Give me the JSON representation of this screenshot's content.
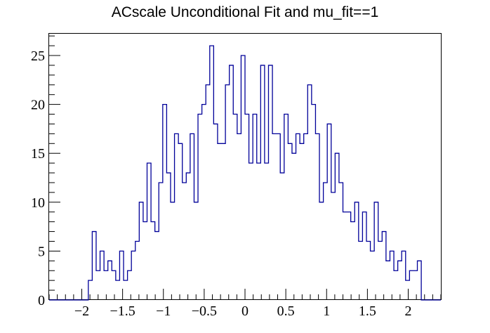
{
  "chart_data": {
    "type": "bar",
    "title": "ACscale Unconditional Fit and mu_fit==1",
    "xlabel": "",
    "ylabel": "",
    "xlim": [
      -2.4,
      2.4
    ],
    "ylim": [
      0,
      27.3
    ],
    "x_ticks": [
      -2,
      -1.5,
      -1,
      -0.5,
      0,
      0.5,
      1,
      1.5,
      2
    ],
    "x_tick_labels": [
      "−2",
      "−1.5",
      "−1",
      "−0.5",
      "0",
      "0.5",
      "1",
      "1.5",
      "2"
    ],
    "y_ticks": [
      0,
      5,
      10,
      15,
      20,
      25
    ],
    "y_tick_labels": [
      "0",
      "5",
      "10",
      "15",
      "20",
      "25"
    ],
    "bin_edges_start": -2.4,
    "bin_width": 0.048,
    "series": [
      {
        "color": "#000099",
        "style": "step",
        "values": [
          0,
          0,
          0,
          0,
          0,
          0,
          0,
          0,
          0,
          0,
          2,
          7,
          3,
          5,
          3,
          4,
          3,
          2,
          5,
          2,
          3,
          5,
          6,
          10,
          8,
          14,
          8,
          7,
          12,
          20,
          13,
          10,
          17,
          16,
          12,
          13,
          17,
          10,
          19,
          20,
          22,
          26,
          18,
          16,
          16,
          22,
          24,
          19,
          17,
          25,
          19,
          14,
          19,
          14,
          24,
          14,
          24,
          17,
          17,
          13,
          19,
          16,
          15,
          17,
          16,
          17,
          22,
          20,
          17,
          10,
          12,
          18,
          11,
          15,
          12,
          9,
          9,
          8,
          10,
          6,
          9,
          6,
          5,
          10,
          6,
          7,
          4,
          5,
          3,
          4,
          5,
          2,
          3,
          3,
          4,
          0,
          0,
          0,
          0,
          0
        ]
      }
    ]
  }
}
